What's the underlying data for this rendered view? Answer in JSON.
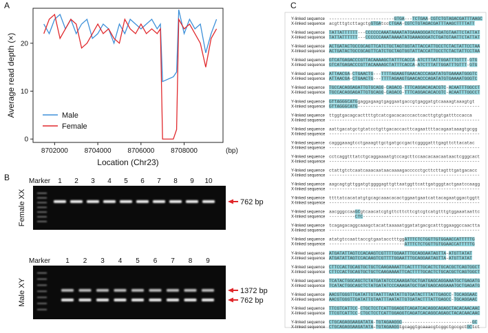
{
  "panel_labels": [
    "A",
    "B",
    "C"
  ],
  "chart_data": {
    "type": "line",
    "ylabel": "Average read depth (×)",
    "xlabel": "Location (Chr23)",
    "x_unit_label": "(bp)",
    "x": [
      8701500,
      8701750,
      8702000,
      8702250,
      8702500,
      8702750,
      8703000,
      8703250,
      8703500,
      8703750,
      8704000,
      8704250,
      8704500,
      8704750,
      8705000,
      8705250,
      8705500,
      8705750,
      8706000,
      8706250,
      8706500,
      8706750,
      8706900,
      8707000,
      8707500,
      8707650,
      8707750,
      8708000,
      8708250,
      8708500,
      8708750,
      8709000,
      8709250,
      8709500
    ],
    "series": [
      {
        "name": "Male",
        "color": "#3b8fd9",
        "values": [
          24,
          22,
          25,
          26,
          23,
          25,
          22,
          24,
          25,
          21,
          22,
          24,
          23,
          20,
          24,
          22,
          25,
          24,
          23,
          24,
          25,
          23,
          24,
          12,
          13,
          14,
          27,
          22,
          25,
          23,
          24,
          18,
          22,
          25
        ]
      },
      {
        "name": "Female",
        "color": "#e0262a",
        "values": [
          22,
          25,
          26,
          21,
          23,
          25,
          24,
          19,
          20,
          22,
          24,
          22,
          23,
          21,
          20,
          25,
          23,
          22,
          24,
          22,
          23,
          22,
          23,
          0,
          0,
          2,
          25,
          23,
          24,
          22,
          20,
          15,
          21,
          23
        ]
      }
    ],
    "xlim": [
      8701000,
      8709800
    ],
    "xticks": [
      8702000,
      8704000,
      8706000,
      8708000
    ],
    "ylim": [
      -0.7,
      27.3
    ],
    "yticks": [
      0,
      10,
      20
    ],
    "grid": false,
    "legend": "lower left"
  },
  "gel": {
    "female": {
      "title": "Female XX",
      "marker": "Marker",
      "lanes": [
        "1",
        "2",
        "3",
        "4",
        "5",
        "6",
        "7",
        "8",
        "9",
        "10"
      ],
      "bands": [
        "762 bp"
      ]
    },
    "male": {
      "title": "Male XY",
      "marker": "Marker",
      "lanes": [
        "1",
        "2",
        "3",
        "4",
        "5",
        "6",
        "7",
        "8",
        "9"
      ],
      "bands": [
        "1372 bp",
        "762 bp"
      ]
    }
  },
  "alignment": {
    "blocks": [
      {
        "y_label": "Y-linked sequence",
        "y_seq": "-------------------------GTGA---TCTGAA-CGTCTGTAGACGATTTAAGC",
        "x_label": "X-linked sequence",
        "x_seq": "acgtttgtcttagctgGTGAtccCTGAA-CGTCTGTAGACGATTTAAGCTTTTATT"
      },
      {
        "y_label": "Y-linked sequence",
        "y_seq": "TATTATTTTTT---CCCCCCAAATAAAATATGAAAGGGATCTGATGTAATTCTATTAT",
        "x_label": "X-linked sequence",
        "x_seq": "TATTATTTTTT---CCCCCCAAATAAAATATGAAAGGGATCTGATGTAATTCTATTAT"
      },
      {
        "y_label": "Y-linked sequence",
        "y_seq": "ACTGATACTGCCGCAGTTCATCTGCTAGTGGTATTACCATTGCCTCTACTATTCCTAA",
        "x_label": "X-linked sequence",
        "x_seq": "ACTGATACTGCCGCAGTTCATCTGCTAGTGGTATTACCATTGCCTCTACTATTCCTAA"
      },
      {
        "y_label": "Y-linked sequence",
        "y_seq": "GTCATGAGACCCGTTACAAAAGCTATTTCACCA-ATCTTTATTGGATTTGTTT-GTG",
        "x_label": "X-linked sequence",
        "x_seq": "GTCATGAGACCCGTTACAAAAGCTATTTCACCA-ATCTTTATTGGATTTGTTT-GTG"
      },
      {
        "y_label": "Y-linked sequence",
        "y_seq": "ATTAACGA-CTGAACTG---TTTTAGAAGTGAACACCCAGATATGTGAAAATGGGTC",
        "x_label": "X-linked sequence",
        "x_seq": "ATTAACGA-CTGAACTG---TTTTAGAAGTGAACACCCAGATATGTGAAAATGGGTC"
      },
      {
        "y_label": "Y-linked sequence",
        "y_seq": "TGCCACAGGAGATTGTGCAGG-CAGACG-TTTCAGGACACACGTC-ACAATTTGGCCT",
        "x_label": "X-linked sequence",
        "x_seq": "TGCCACAGGAGATTGTGCAGG-CAGACG-TTTCAGGACACACGTC-ACAATTTGGCCT"
      },
      {
        "y_label": "Y-linked sequence",
        "y_seq": "GTTAGGGCATGgaggagaagtgaggaatgaccgtgaggatgtcaaaagtaaagtgt",
        "x_label": "X-linked sequence",
        "x_seq": "GTTAGGGCATG-----------------------------------------------"
      },
      {
        "y_label": "Y-linked sequence",
        "y_seq": "ttggtgacagcacttttgtcatcgacacacccactcacttgtgtgatttccacca",
        "x_label": "X-linked sequence",
        "x_seq": "----------------------------------------------------------"
      },
      {
        "y_label": "Y-linked sequence",
        "y_seq": "aattgacatgctgtatcctgttgacaccacttcagaattttacagaataaagtgcgg",
        "x_label": "X-linked sequence",
        "x_seq": "----------------------------------------------------------"
      },
      {
        "y_label": "Y-linked sequence",
        "y_seq": "cagggaaagtcctgaaagttgctgatgccgactcggggatttgagttcttacatac",
        "x_label": "X-linked sequence",
        "x_seq": "----------------------------------------------------------"
      },
      {
        "y_label": "Y-linked sequence",
        "y_seq": "cctcaggtttatctgcaggaaaatgtccagcttccaacacaacaataactcgggcact",
        "x_label": "X-linked sequence",
        "x_seq": "----------------------------------------------------------"
      },
      {
        "y_label": "Y-linked sequence",
        "y_seq": "ctattgtctcaatcaaacaataacaaaagaccccctgcttcttagtttgatgacacc",
        "x_label": "X-linked sequence",
        "x_seq": "----------------------------------------------------------"
      },
      {
        "y_label": "Y-linked sequence",
        "y_seq": "aagcagtgttggatgtggggagttgttaatggttcattgatgggtactgaatccaagg",
        "x_label": "X-linked sequence",
        "x_seq": "----------------------------------------------------------"
      },
      {
        "y_label": "Y-linked sequence",
        "y_seq": "ttttatcacatatgtgcagcaaacacactggaatgaatcattacagaatggactggtt",
        "x_label": "X-linked sequence",
        "x_seq": "----------------------------------------------------------"
      },
      {
        "y_label": "Y-linked sequence",
        "y_seq": "aacgggccaaGCgtcaacatcgtgttcttcttcgtcgtcatgtttgtggaaataattc",
        "x_label": "X-linked sequence",
        "x_seq": "----------CTC---------------------------------------------"
      },
      {
        "y_label": "Y-linked sequence",
        "y_seq": "tcagagacaggcaaagctacattaaaaatggatatgacgcatttggaaggccaactta",
        "x_label": "X-linked sequence",
        "x_seq": "----------------------------------------------------------"
      },
      {
        "y_label": "Y-linked sequence",
        "y_seq": "atatgtccaattaccgtgaatacctttggATTTCTCTGGTTGTGGAACCATTTTTG",
        "x_label": "X-linked sequence",
        "x_seq": "-----------------------------ATTTCTCTGGTTGTGGAACCATTTTTG"
      },
      {
        "y_label": "Y-linked sequence",
        "y_seq": "ATGATATTAGTCCACAAGTCGTTTTGGAATTTGCAGGAATAGTTA-ATGTTATAT",
        "x_label": "X-linked sequence",
        "x_seq": "ATGATATTAGTCCACAAGTCGTTTTGGAATTTGCAGGAATAGTTA-ATGTTATAT"
      },
      {
        "y_label": "Y-linked sequence",
        "y_seq": "CTTCCACTGCAGTGCTGCTCAAGAAAATTCACTTTTGCACTCTGCACGCTCAGTGGCT",
        "x_label": "X-linked sequence",
        "x_seq": "CTTCCACTGCAGTGCTGCTCAAGAAAATTCACTTTTGCACTCTGCACGCTCAGTGGCT"
      },
      {
        "y_label": "Y-linked sequence",
        "y_seq": "TCATACTGGCAGCTCTATGATATCCCAAAGATGCTGATGAGCAGGAAATGCTGAGATG",
        "x_label": "X-linked sequence",
        "x_seq": "TCATACTGGCAGCTCTATGATATCCCAAAGATGCTGATGAGCAGGAAATGCTGAGATG"
      },
      {
        "y_label": "Y-linked sequence",
        "y_seq": "AACGTGGGTTGATATTGTAATTTAATATTGTGATACTTTATTGAGCC-TGCAGGAAC",
        "x_label": "X-linked sequence",
        "x_seq": "AACGTGGGTTGATATTGTAATTTAATATTGTGATACTTTATTGAGCC-TGCAGGAAC"
      },
      {
        "y_label": "Y-linked sequence",
        "y_seq": "TTCGTCATTCC-CTGCTCCTCATTGGAGGTCAGATCACAGGCAGAGCTACACAACAAC",
        "x_label": "X-linked sequence",
        "x_seq": "TTCGTCATTCC-CTGCTCCTCATTGGAGGTCAGATCACAGGCAGAGCTACACAACAAC"
      },
      {
        "y_label": "Y-linked sequence",
        "y_seq": "CTGCAGAGGAAGATATA-TGTAGAAGGG---------------------------GC",
        "x_label": "X-linked sequence",
        "x_seq": "CTGCAGAGGAAGATATA-TGTAGAAGGtgcaggtgcaaacgtcggctgccgctGCtct"
      }
    ]
  }
}
